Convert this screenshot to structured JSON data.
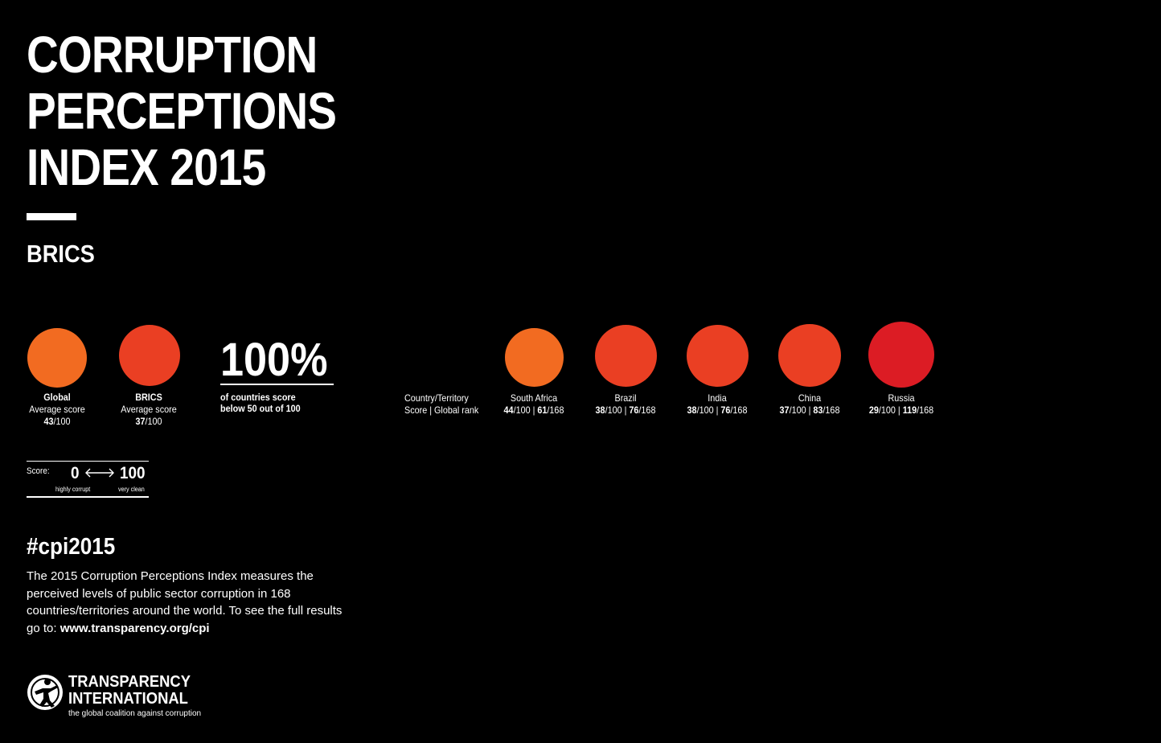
{
  "header": {
    "title_lines": [
      "CORRUPTION",
      "PERCEPTIONS",
      "INDEX 2015"
    ],
    "subtitle": "BRICS"
  },
  "summary": [
    {
      "label": "Global",
      "sub": "Average score",
      "score": "43",
      "max": "/100",
      "color": "#f26b21"
    },
    {
      "label": "BRICS",
      "sub": "Average score",
      "score": "37",
      "max": "/100",
      "color": "#ea3f23"
    }
  ],
  "share": {
    "value": "100%",
    "caption_line1": "of countries score",
    "caption_line2": "below 50 out of 100"
  },
  "legend": {
    "line1": "Country/Territory",
    "line2": "Score | Global rank"
  },
  "countries": [
    {
      "name": "South Africa",
      "score": "44",
      "score_max": "/100 | ",
      "rank": "61",
      "rank_max": "/168",
      "color": "#f26b21"
    },
    {
      "name": "Brazil",
      "score": "38",
      "score_max": "/100 | ",
      "rank": "76",
      "rank_max": "/168",
      "color": "#ea3f23"
    },
    {
      "name": "India",
      "score": "38",
      "score_max": "/100 | ",
      "rank": "76",
      "rank_max": "/168",
      "color": "#ea3f23"
    },
    {
      "name": "China",
      "score": "37",
      "score_max": "/100 | ",
      "rank": "83",
      "rank_max": "/168",
      "color": "#ea3f23"
    },
    {
      "name": "Russia",
      "score": "29",
      "score_max": "/100 | ",
      "rank": "119",
      "rank_max": "/168",
      "color": "#dc1c24"
    }
  ],
  "scale": {
    "label": "Score:",
    "min": "0",
    "max": "100",
    "min_caption": "highly corrupt",
    "max_caption": "very clean"
  },
  "footer": {
    "hashtag": "#cpi2015",
    "description": "The 2015 Corruption Perceptions Index measures the perceived levels of public sector corruption in 168 countries/territories around the world. To see the full results go to: ",
    "url": "www.transparency.org/cpi"
  },
  "logo": {
    "line1": "TRANSPARENCY",
    "line2": "INTERNATIONAL",
    "tagline": "the global coalition against corruption"
  }
}
